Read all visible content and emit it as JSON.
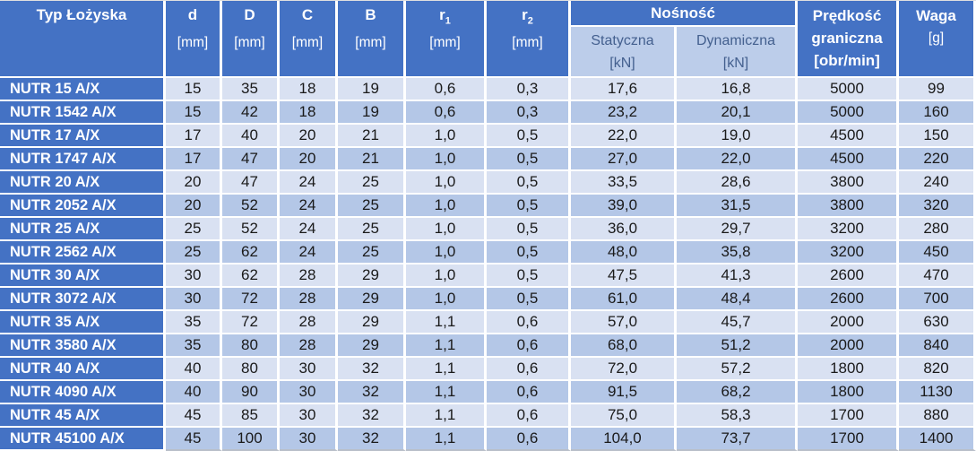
{
  "colors": {
    "header_bg": "#4472C4",
    "header_text": "#FFFFFF",
    "name_column_bg": "#4472C4",
    "row_light_bg": "#D9E1F2",
    "row_band_bg": "#B4C7E7",
    "subheader_bg": "#BCCDEA",
    "subheader_text": "#44608F",
    "data_text": "#1A1A1A"
  },
  "table": {
    "columns": {
      "type_label": "Typ Łożyska",
      "dims": [
        {
          "label": "d",
          "sub": "",
          "unit": "[mm]"
        },
        {
          "label": "D",
          "sub": "",
          "unit": "[mm]"
        },
        {
          "label": "C",
          "sub": "",
          "unit": "[mm]"
        },
        {
          "label": "B",
          "sub": "",
          "unit": "[mm]"
        },
        {
          "label": "r",
          "sub": "1",
          "unit": "[mm]"
        },
        {
          "label": "r",
          "sub": "2",
          "unit": "[mm]"
        }
      ],
      "load_group": {
        "label": "Nośność",
        "sub": [
          {
            "label": "Statyczna",
            "unit": "[kN]"
          },
          {
            "label": "Dynamiczna",
            "unit": "[kN]"
          }
        ]
      },
      "speed": {
        "line1": "Prędkość",
        "line2": "graniczna",
        "unit": "[obr/min]"
      },
      "weight": {
        "label": "Waga",
        "unit": "[g]"
      }
    },
    "rows": [
      {
        "type": "NUTR 15 A/X",
        "values": [
          "15",
          "35",
          "18",
          "19",
          "0,6",
          "0,3",
          "17,6",
          "16,8",
          "5000",
          "99"
        ]
      },
      {
        "type": "NUTR 1542 A/X",
        "values": [
          "15",
          "42",
          "18",
          "19",
          "0,6",
          "0,3",
          "23,2",
          "20,1",
          "5000",
          "160"
        ]
      },
      {
        "type": "NUTR 17 A/X",
        "values": [
          "17",
          "40",
          "20",
          "21",
          "1,0",
          "0,5",
          "22,0",
          "19,0",
          "4500",
          "150"
        ]
      },
      {
        "type": "NUTR 1747 A/X",
        "values": [
          "17",
          "47",
          "20",
          "21",
          "1,0",
          "0,5",
          "27,0",
          "22,0",
          "4500",
          "220"
        ]
      },
      {
        "type": "NUTR 20 A/X",
        "values": [
          "20",
          "47",
          "24",
          "25",
          "1,0",
          "0,5",
          "33,5",
          "28,6",
          "3800",
          "240"
        ]
      },
      {
        "type": "NUTR 2052 A/X",
        "values": [
          "20",
          "52",
          "24",
          "25",
          "1,0",
          "0,5",
          "39,0",
          "31,5",
          "3800",
          "320"
        ]
      },
      {
        "type": "NUTR 25 A/X",
        "values": [
          "25",
          "52",
          "24",
          "25",
          "1,0",
          "0,5",
          "36,0",
          "29,7",
          "3200",
          "280"
        ]
      },
      {
        "type": "NUTR 2562 A/X",
        "values": [
          "25",
          "62",
          "24",
          "25",
          "1,0",
          "0,5",
          "48,0",
          "35,8",
          "3200",
          "450"
        ]
      },
      {
        "type": "NUTR 30 A/X",
        "values": [
          "30",
          "62",
          "28",
          "29",
          "1,0",
          "0,5",
          "47,5",
          "41,3",
          "2600",
          "470"
        ]
      },
      {
        "type": "NUTR 3072 A/X",
        "values": [
          "30",
          "72",
          "28",
          "29",
          "1,0",
          "0,5",
          "61,0",
          "48,4",
          "2600",
          "700"
        ]
      },
      {
        "type": "NUTR 35 A/X",
        "values": [
          "35",
          "72",
          "28",
          "29",
          "1,1",
          "0,6",
          "57,0",
          "45,7",
          "2000",
          "630"
        ]
      },
      {
        "type": "NUTR 3580 A/X",
        "values": [
          "35",
          "80",
          "28",
          "29",
          "1,1",
          "0,6",
          "68,0",
          "51,2",
          "2000",
          "840"
        ]
      },
      {
        "type": "NUTR 40 A/X",
        "values": [
          "40",
          "80",
          "30",
          "32",
          "1,1",
          "0,6",
          "72,0",
          "57,2",
          "1800",
          "820"
        ]
      },
      {
        "type": "NUTR 4090 A/X",
        "values": [
          "40",
          "90",
          "30",
          "32",
          "1,1",
          "0,6",
          "91,5",
          "68,2",
          "1800",
          "1130"
        ]
      },
      {
        "type": "NUTR 45 A/X",
        "values": [
          "45",
          "85",
          "30",
          "32",
          "1,1",
          "0,6",
          "75,0",
          "58,3",
          "1700",
          "880"
        ]
      },
      {
        "type": "NUTR 45100 A/X",
        "values": [
          "45",
          "100",
          "30",
          "32",
          "1,1",
          "0,6",
          "104,0",
          "73,7",
          "1700",
          "1400"
        ]
      }
    ]
  }
}
